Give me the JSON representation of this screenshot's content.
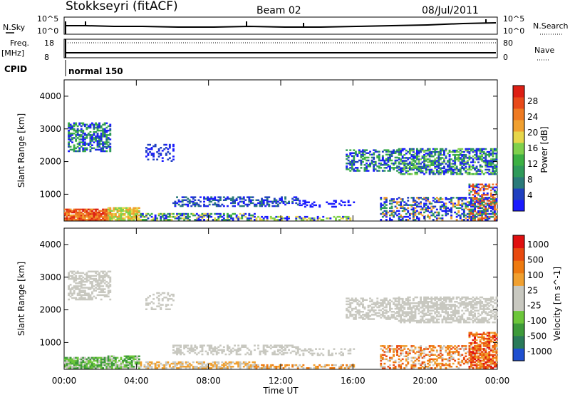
{
  "header": {
    "station": "Stokkseyri (fitACF)",
    "beam": "Beam 02",
    "date": "08/Jul/2011"
  },
  "status_panels": {
    "nsky_label": "N.Sky",
    "nsky_ticks": [
      "10^5",
      "10^0"
    ],
    "nsearch_label": "N.Search",
    "nsearch_ticks": [
      "10^5",
      "10^0"
    ],
    "freq_label": "Freq.",
    "freq_unit": "[MHz]",
    "freq_ticks": [
      "18",
      "8"
    ],
    "nave_label": "Nave",
    "nave_ticks": [
      "80",
      "0"
    ],
    "cpid_label": "CPID",
    "cpid_value": "normal 150"
  },
  "chart_data": [
    {
      "type": "heatmap",
      "name": "power",
      "xlabel": "Time UT",
      "ylabel": "Slant Range [km]",
      "x_ticks": [
        "00:00",
        "04:00",
        "08:00",
        "12:00",
        "16:00",
        "20:00",
        "00:00"
      ],
      "xlim_hours": [
        0,
        24
      ],
      "ylim": [
        180,
        4500
      ],
      "y_ticks": [
        1000,
        2000,
        3000,
        4000
      ],
      "colorbar": {
        "label": "Power [dB]",
        "ticks": [
          "4",
          "8",
          "12",
          "16",
          "20",
          "24",
          "28"
        ],
        "colors": [
          "#1a1aff",
          "#2040c0",
          "#2a7a7a",
          "#2f9a5a",
          "#3cb043",
          "#7fd04c",
          "#e6d64a",
          "#f0a030",
          "#ee7a22",
          "#e84a1a",
          "#dd1f14"
        ]
      }
    },
    {
      "type": "heatmap",
      "name": "velocity",
      "xlabel": "Time UT",
      "ylabel": "Slant Range [km]",
      "x_ticks": [
        "00:00",
        "04:00",
        "08:00",
        "12:00",
        "16:00",
        "20:00",
        "00:00"
      ],
      "xlim_hours": [
        0,
        24
      ],
      "ylim": [
        180,
        4500
      ],
      "y_ticks": [
        1000,
        2000,
        3000,
        4000
      ],
      "colorbar": {
        "label": "Velocity [m s^-1]",
        "ticks": [
          "1000",
          "500",
          "100",
          "25",
          "-25",
          "-100",
          "-500",
          "-1000"
        ],
        "colors": [
          "#1f4fd0",
          "#2a7a5a",
          "#3d9a3a",
          "#6cc63a",
          "#c8c8c0",
          "#c8c8c0",
          "#f0a030",
          "#ee7a10",
          "#e84a10",
          "#e01010"
        ]
      }
    }
  ]
}
